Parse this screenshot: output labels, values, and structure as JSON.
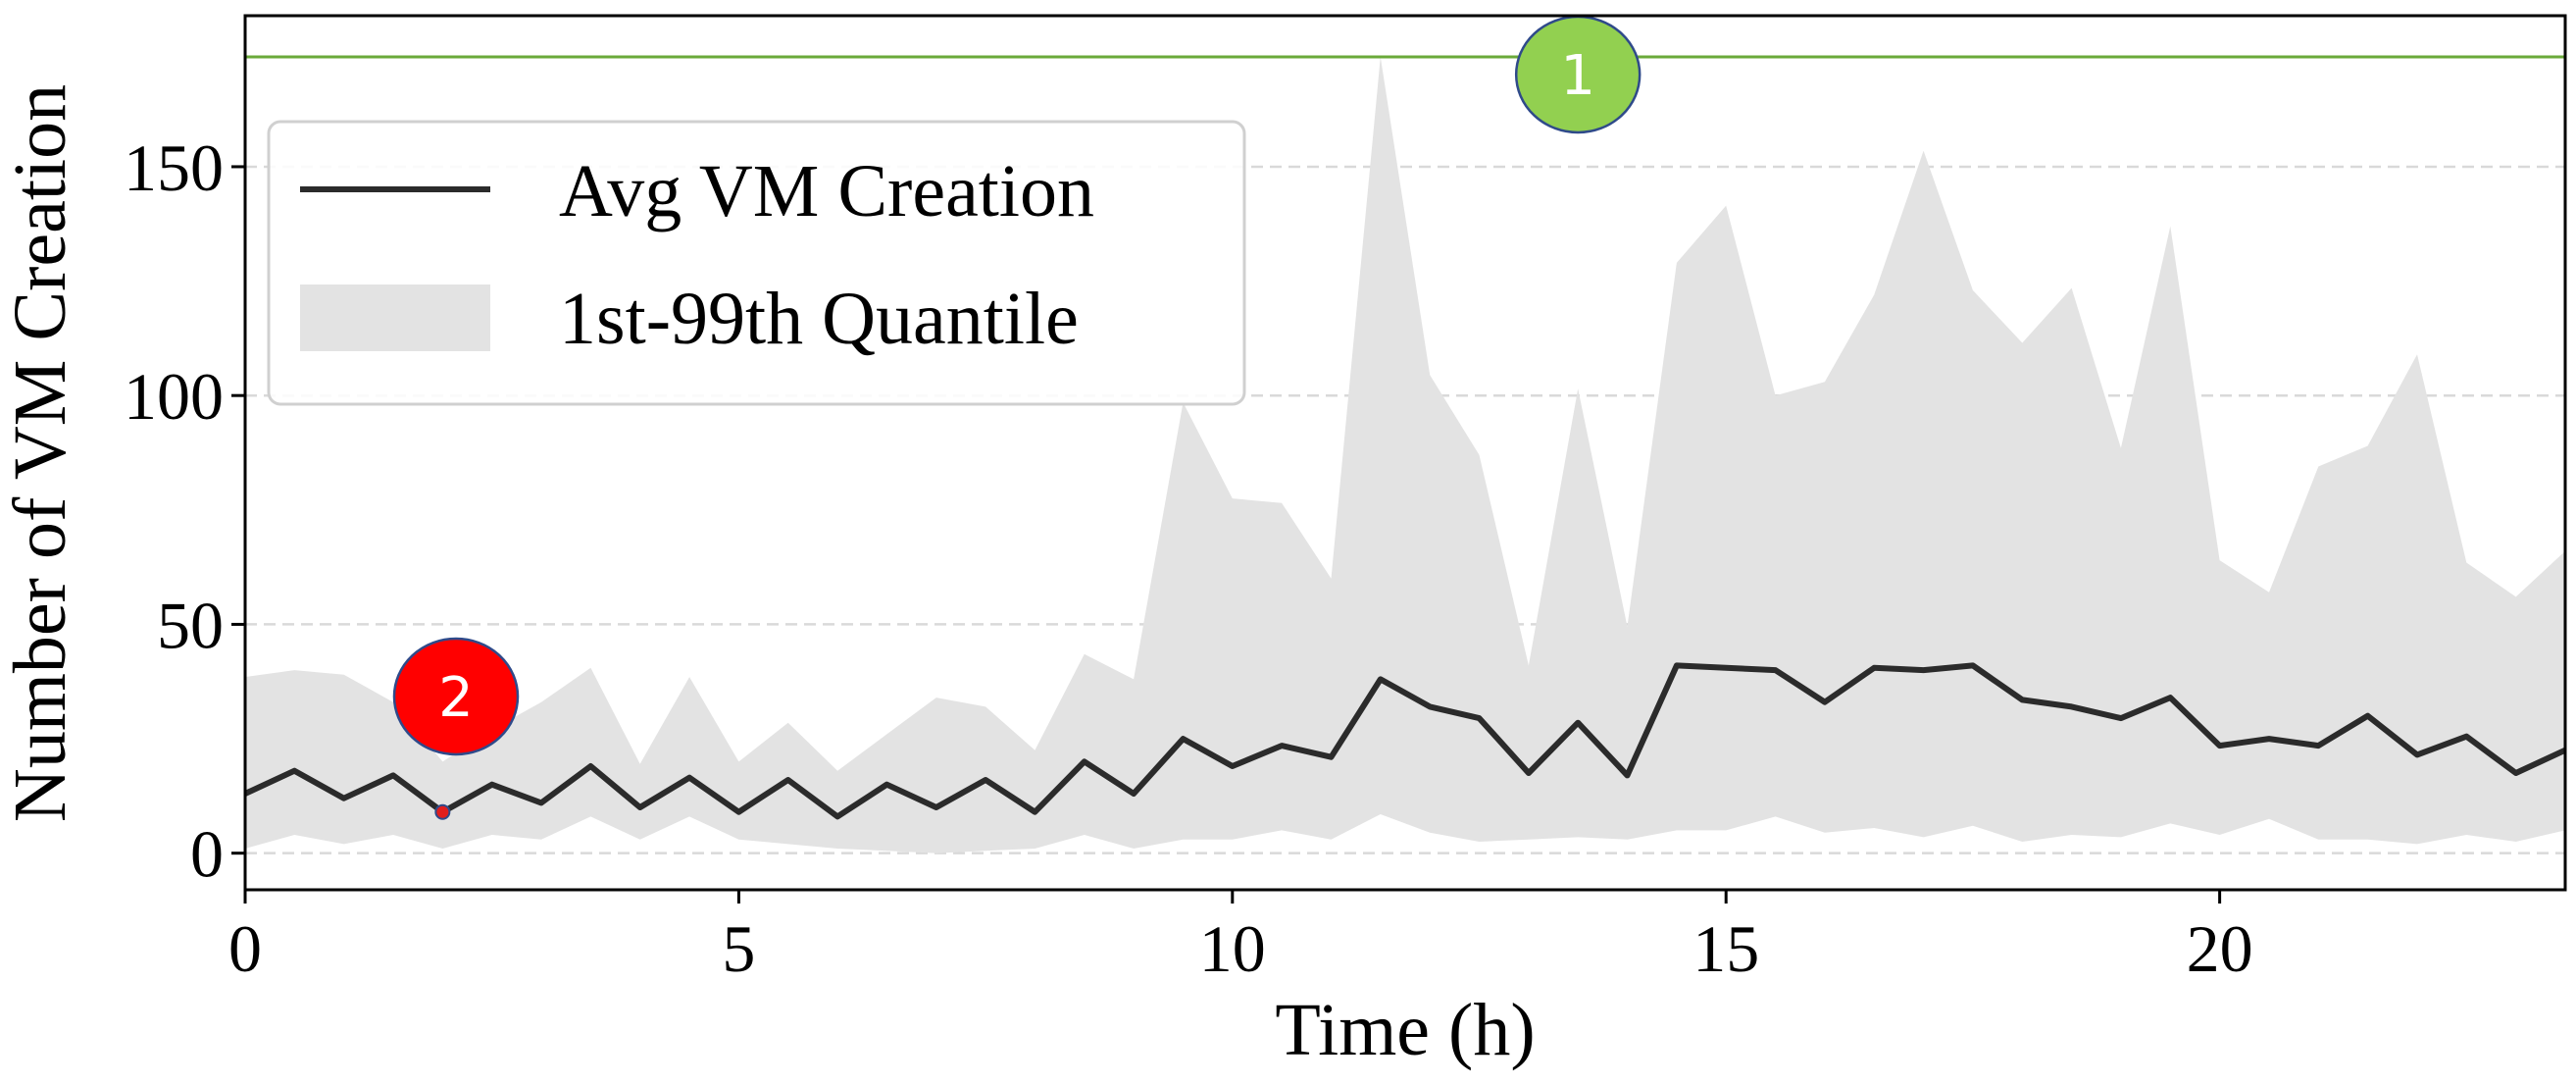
{
  "chart_data": {
    "type": "line",
    "xlabel": "Time (h)",
    "ylabel": "Number of VM Creation",
    "xlim": [
      0,
      23.5
    ],
    "ylim": [
      -8,
      183
    ],
    "xticks": [
      0,
      5,
      10,
      15,
      20
    ],
    "xtick_labels": [
      "0",
      "5",
      "10",
      "15",
      "20"
    ],
    "yticks": [
      0,
      50,
      100,
      150
    ],
    "ytick_labels": [
      "0",
      "50",
      "100",
      "150"
    ],
    "grid": "horizontal dashed",
    "legend_position": "top-left",
    "legend": [
      {
        "label": "Avg VM Creation",
        "kind": "line",
        "color": "#2b2b2b"
      },
      {
        "label": "1st-99th Quantile",
        "kind": "area",
        "color": "#e3e3e3"
      }
    ],
    "x": [
      0,
      0.5,
      1,
      1.5,
      2,
      2.5,
      3,
      3.5,
      4,
      4.5,
      5,
      5.5,
      6,
      6.5,
      7,
      7.5,
      8,
      8.5,
      9,
      9.5,
      10,
      10.5,
      11,
      11.5,
      12,
      12.5,
      13,
      13.5,
      14,
      14.5,
      15,
      15.5,
      16,
      16.5,
      17,
      17.5,
      18,
      18.5,
      19,
      19.5,
      20,
      20.5,
      21,
      21.5,
      22,
      22.5,
      23,
      23.5
    ],
    "series": [
      {
        "name": "Avg VM Creation",
        "color": "#2b2b2b",
        "values": [
          13,
          18,
          12,
          17,
          9,
          15,
          11,
          19,
          10,
          16.5,
          9,
          16,
          8,
          15,
          10,
          16,
          9,
          20,
          13,
          25,
          19,
          23.5,
          21,
          38,
          32,
          29.5,
          17.5,
          28.5,
          17,
          41,
          40.5,
          40,
          33,
          40.5,
          40,
          41,
          33.5,
          32,
          29.5,
          34,
          23.5,
          25,
          23.5,
          30,
          21.5,
          25.5,
          17.5,
          22.5
        ]
      },
      {
        "name": "1st-99th Quantile",
        "type": "area",
        "color": "#e3e3e3",
        "lower": [
          1,
          4,
          2,
          4,
          1,
          4,
          3,
          8,
          3,
          8,
          3,
          2,
          1,
          0.5,
          0,
          0.5,
          1,
          4,
          1,
          3,
          3,
          5,
          3,
          8.5,
          4.5,
          2.5,
          3,
          3.5,
          3,
          5,
          5,
          8,
          4.5,
          5.5,
          3.5,
          6,
          2.5,
          4,
          3.5,
          6.5,
          4,
          7.5,
          3,
          3,
          2,
          4,
          2.5,
          5
        ],
        "upper": [
          38.5,
          40,
          39,
          33,
          20,
          27,
          33,
          40.5,
          19.5,
          38.5,
          20,
          28.5,
          18,
          26,
          34,
          32,
          22.5,
          43.5,
          38,
          98.5,
          77.5,
          76.5,
          60,
          174,
          104.5,
          87,
          41,
          101.5,
          49.5,
          129,
          141.5,
          100,
          103,
          122,
          153.5,
          123,
          111.5,
          123.5,
          88.5,
          137,
          64,
          57,
          84.5,
          89,
          109,
          63.5,
          56,
          66
        ]
      }
    ],
    "annotations": [
      {
        "label": "1",
        "kind": "horizontal line at peak",
        "y": 174,
        "x": 13.5,
        "color": "#92d050"
      },
      {
        "label": "2",
        "kind": "minimum point",
        "x": 2,
        "y": 9,
        "color": "#ff0000"
      }
    ]
  }
}
